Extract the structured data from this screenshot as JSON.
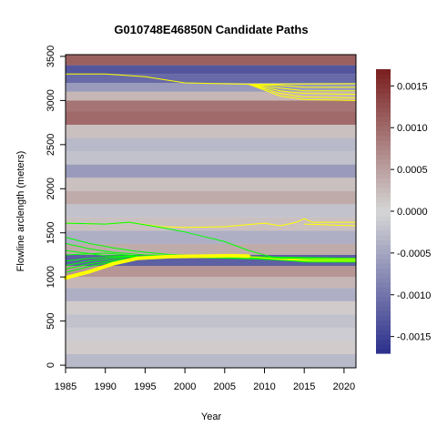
{
  "chart_data": {
    "type": "heatmap",
    "title": "G010748E46850N Candidate Paths",
    "xlabel": "Year",
    "ylabel": "Flowline arclength (meters)",
    "xlim": [
      1985,
      2021.5
    ],
    "ylim": [
      -30,
      3520
    ],
    "x_ticks": [
      1985,
      1990,
      1995,
      2000,
      2005,
      2010,
      2015,
      2020
    ],
    "y_ticks": [
      0,
      500,
      1000,
      1500,
      2000,
      2500,
      3000,
      3500
    ],
    "colorbar": {
      "range": [
        -0.0017,
        0.0017
      ],
      "ticks": [
        0.0015,
        0.001,
        0.0005,
        0.0,
        -0.0005,
        -0.001,
        -0.0015
      ],
      "tick_labels": [
        "0.0015",
        "0.0010",
        "0.0005",
        "0.0000",
        "-0.0005",
        "-0.0010",
        "-0.0015"
      ],
      "colors": {
        "low": "#2b2f8c",
        "mid": "#d6d6d6",
        "high": "#7a1f1f"
      }
    },
    "heatmap_bands": [
      {
        "y": 3450,
        "value": 0.0011
      },
      {
        "y": 3350,
        "value": -0.0013
      },
      {
        "y": 3250,
        "value": -0.0011
      },
      {
        "y": 3150,
        "value": -0.0006
      },
      {
        "y": 3050,
        "value": 0.0003
      },
      {
        "y": 2950,
        "value": 0.0009
      },
      {
        "y": 2800,
        "value": 0.001
      },
      {
        "y": 2650,
        "value": 0.0002
      },
      {
        "y": 2500,
        "value": -0.0003
      },
      {
        "y": 2350,
        "value": -0.0002
      },
      {
        "y": 2200,
        "value": -0.0006
      },
      {
        "y": 2050,
        "value": 0.0002
      },
      {
        "y": 1900,
        "value": 0.0004
      },
      {
        "y": 1750,
        "value": -0.0002
      },
      {
        "y": 1600,
        "value": 0.0002
      },
      {
        "y": 1450,
        "value": -0.0004
      },
      {
        "y": 1300,
        "value": 0.0004
      },
      {
        "y": 1200,
        "value": -0.0012
      },
      {
        "y": 1050,
        "value": 0.0006
      },
      {
        "y": 950,
        "value": 0.0003
      },
      {
        "y": 800,
        "value": -0.0004
      },
      {
        "y": 650,
        "value": 0.0001
      },
      {
        "y": 500,
        "value": -0.0002
      },
      {
        "y": 350,
        "value": -0.0001
      },
      {
        "y": 200,
        "value": 0.0001
      },
      {
        "y": 50,
        "value": -0.0003
      }
    ],
    "series": [
      {
        "color": "#ffff00",
        "width": 1,
        "points": [
          [
            1985,
            3300
          ],
          [
            1990,
            3300
          ],
          [
            1995,
            3270
          ],
          [
            2000,
            3200
          ],
          [
            2005,
            3190
          ],
          [
            2008,
            3185
          ],
          [
            2021.5,
            3190
          ]
        ]
      },
      {
        "color": "#ffff00",
        "width": 1,
        "points": [
          [
            2008,
            3185
          ],
          [
            2012,
            3170
          ],
          [
            2015,
            3150
          ],
          [
            2021.5,
            3150
          ]
        ]
      },
      {
        "color": "#ffff00",
        "width": 1,
        "points": [
          [
            2008,
            3185
          ],
          [
            2012,
            3140
          ],
          [
            2015,
            3110
          ],
          [
            2021.5,
            3110
          ]
        ]
      },
      {
        "color": "#ffff00",
        "width": 1,
        "points": [
          [
            2008,
            3185
          ],
          [
            2012,
            3110
          ],
          [
            2015,
            3080
          ],
          [
            2021.5,
            3070
          ]
        ]
      },
      {
        "color": "#ffff00",
        "width": 1,
        "points": [
          [
            2008,
            3185
          ],
          [
            2012,
            3080
          ],
          [
            2015,
            3040
          ],
          [
            2021.5,
            3030
          ]
        ]
      },
      {
        "color": "#ffff00",
        "width": 1,
        "points": [
          [
            2008,
            3185
          ],
          [
            2012,
            3050
          ],
          [
            2015,
            3010
          ],
          [
            2021.5,
            3000
          ]
        ]
      },
      {
        "color": "#ffff00",
        "width": 1,
        "points": [
          [
            1985,
            1610
          ],
          [
            1990,
            1600
          ],
          [
            1993,
            1620
          ],
          [
            1997,
            1570
          ],
          [
            2000,
            1560
          ],
          [
            2005,
            1570
          ],
          [
            2010,
            1610
          ],
          [
            2012,
            1580
          ],
          [
            2014,
            1620
          ],
          [
            2015,
            1660
          ],
          [
            2016,
            1620
          ],
          [
            2021.5,
            1620
          ]
        ]
      },
      {
        "color": "#ffff00",
        "width": 1,
        "points": [
          [
            2015,
            1600
          ],
          [
            2021.5,
            1580
          ]
        ]
      },
      {
        "color": "#00ff00",
        "width": 1,
        "points": [
          [
            1985,
            1610
          ],
          [
            1990,
            1600
          ],
          [
            1993,
            1620
          ],
          [
            1997,
            1560
          ],
          [
            2000,
            1510
          ],
          [
            2005,
            1400
          ],
          [
            2008,
            1300
          ],
          [
            2012,
            1200
          ],
          [
            2015,
            1170
          ],
          [
            2021.5,
            1170
          ]
        ]
      },
      {
        "color": "#00ff00",
        "width": 1,
        "points": [
          [
            1985,
            1450
          ],
          [
            1988,
            1380
          ],
          [
            1991,
            1330
          ],
          [
            1994,
            1290
          ],
          [
            1998,
            1255
          ],
          [
            2002,
            1240
          ],
          [
            2006,
            1230
          ],
          [
            2010,
            1200
          ],
          [
            2014,
            1180
          ],
          [
            2021.5,
            1180
          ]
        ]
      },
      {
        "color": "#00ff00",
        "width": 1,
        "points": [
          [
            1985,
            1380
          ],
          [
            1988,
            1320
          ],
          [
            1991,
            1280
          ],
          [
            1995,
            1250
          ],
          [
            2000,
            1240
          ],
          [
            2010,
            1200
          ],
          [
            2021.5,
            1170
          ]
        ]
      },
      {
        "color": "#00ff00",
        "width": 1,
        "points": [
          [
            1985,
            1300
          ],
          [
            1990,
            1240
          ],
          [
            1995,
            1230
          ],
          [
            2000,
            1240
          ],
          [
            2010,
            1220
          ],
          [
            2021.5,
            1200
          ]
        ]
      },
      {
        "color": "#00ff00",
        "width": 1,
        "points": [
          [
            1985,
            1250
          ],
          [
            1990,
            1270
          ],
          [
            1995,
            1230
          ],
          [
            2000,
            1240
          ],
          [
            2021.5,
            1210
          ]
        ]
      },
      {
        "color": "#00ff00",
        "width": 1,
        "points": [
          [
            1985,
            1180
          ],
          [
            1988,
            1210
          ],
          [
            1992,
            1230
          ],
          [
            2000,
            1245
          ],
          [
            2021.5,
            1200
          ]
        ]
      },
      {
        "color": "#00ff00",
        "width": 1,
        "points": [
          [
            1985,
            1130
          ],
          [
            1988,
            1180
          ],
          [
            1992,
            1220
          ],
          [
            2000,
            1240
          ],
          [
            2021.5,
            1190
          ]
        ]
      },
      {
        "color": "#00ff00",
        "width": 1,
        "points": [
          [
            1985,
            1090
          ],
          [
            1988,
            1150
          ],
          [
            1992,
            1200
          ],
          [
            2000,
            1240
          ],
          [
            2021.5,
            1185
          ]
        ]
      },
      {
        "color": "#00ff00",
        "width": 1,
        "points": [
          [
            1985,
            1050
          ],
          [
            1988,
            1120
          ],
          [
            1992,
            1190
          ],
          [
            1996,
            1230
          ],
          [
            2021.5,
            1180
          ]
        ]
      },
      {
        "color": "#00ff00",
        "width": 1,
        "points": [
          [
            2010,
            1200
          ],
          [
            2015,
            1200
          ],
          [
            2021.5,
            1200
          ]
        ]
      },
      {
        "color": "#ffff00",
        "width": 4,
        "points": [
          [
            1985,
            990
          ],
          [
            1988,
            1060
          ],
          [
            1991,
            1150
          ],
          [
            1994,
            1210
          ],
          [
            1998,
            1230
          ],
          [
            2002,
            1235
          ],
          [
            2006,
            1240
          ],
          [
            2008,
            1235
          ]
        ]
      },
      {
        "color": "#ffff00",
        "width": 1,
        "points": [
          [
            2008,
            1230
          ],
          [
            2012,
            1200
          ],
          [
            2016,
            1180
          ],
          [
            2021.5,
            1180
          ]
        ]
      },
      {
        "color": "#ffff00",
        "width": 1,
        "points": [
          [
            2012,
            1200
          ],
          [
            2016,
            1200
          ],
          [
            2021.5,
            1200
          ]
        ]
      }
    ]
  }
}
